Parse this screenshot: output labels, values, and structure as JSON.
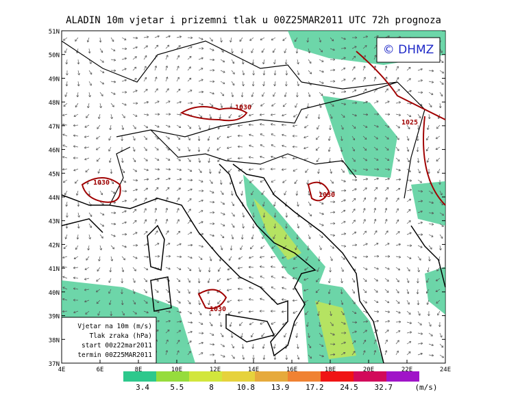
{
  "header": {
    "title": "ALADIN 10m vjetar i prizemni tlak u 00Z25MAR2011 UTC 72h prognoza"
  },
  "map": {
    "logo": "© DHMZ",
    "lat_labels": [
      "51N",
      "50N",
      "49N",
      "48N",
      "47N",
      "46N",
      "45N",
      "44N",
      "43N",
      "42N",
      "41N",
      "40N",
      "39N",
      "38N",
      "37N"
    ],
    "lon_labels": [
      "4E",
      "6E",
      "8E",
      "10E",
      "12E",
      "14E",
      "16E",
      "18E",
      "20E",
      "22E",
      "24E"
    ],
    "contour_labels": [
      "1030",
      "1025",
      "1030",
      "1030",
      "1030"
    ]
  },
  "legend": {
    "lines": [
      "Vjetar na 10m (m/s)",
      "Tlak zraka (hPa)",
      "start 00z22mar2011",
      "termin 00Z25MAR2011"
    ]
  },
  "colorbar": {
    "labels": [
      "3.4",
      "5.5",
      "8",
      "10.8",
      "13.9",
      "17.2",
      "24.5",
      "32.7"
    ],
    "unit": "(m/s)"
  }
}
